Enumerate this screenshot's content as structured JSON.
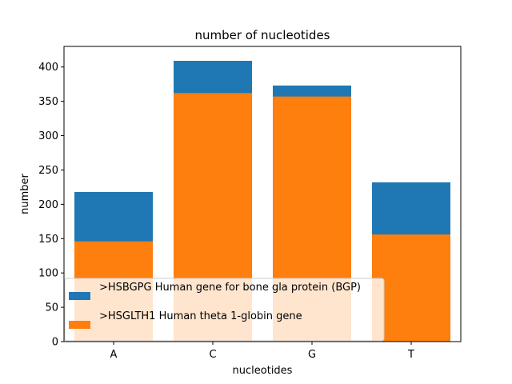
{
  "chart_data": {
    "type": "bar",
    "title": "number of nucleotides",
    "xlabel": "nucleotides",
    "ylabel": "number",
    "categories": [
      "A",
      "C",
      "G",
      "T"
    ],
    "series": [
      {
        "name": ">HSBGPG Human gene for bone gla protein (BGP)",
        "values": [
          218,
          409,
          373,
          232
        ],
        "color": "#1f77b4"
      },
      {
        "name": ">HSGLTH1 Human theta 1-globin gene",
        "values": [
          146,
          362,
          357,
          156
        ],
        "color": "#ff7f0e"
      }
    ],
    "ylim": [
      0,
      430
    ],
    "yticks": [
      0,
      50,
      100,
      150,
      200,
      250,
      300,
      350,
      400
    ],
    "grid": false,
    "legend": "lower-left"
  }
}
